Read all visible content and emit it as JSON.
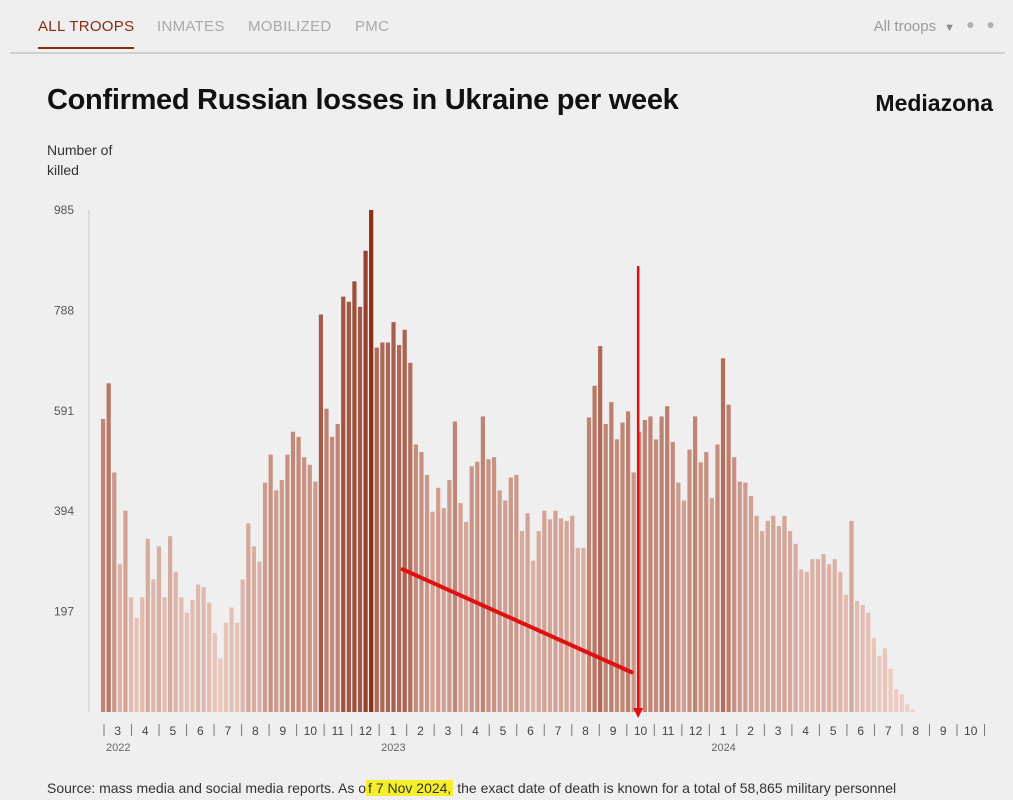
{
  "tabs": [
    {
      "label": "ALL TROOPS",
      "active": true
    },
    {
      "label": "INMATES",
      "active": false
    },
    {
      "label": "MOBILIZED",
      "active": false
    },
    {
      "label": "PMC",
      "active": false
    }
  ],
  "filter": {
    "label": "All troops",
    "icon": "caret-down-icon"
  },
  "more_icon": "more-dots-icon",
  "title": "Confirmed Russian losses in Ukraine per week",
  "brand": "Mediazona",
  "y_axis_label": "Number of killed",
  "source": {
    "prefix": "Source: mass media and social media reports. As o",
    "highlight": "f 7 Nov 2024,",
    "suffix": " the exact date of death is known for a total of 58,865 military personnel"
  },
  "colors": {
    "dark": "#8b2f17",
    "light": "#efcfc6",
    "accent": "#8b2a12",
    "annotation": "#e01010"
  },
  "chart_data": {
    "type": "bar",
    "title": "Confirmed Russian losses in Ukraine per week",
    "ylabel": "Number of killed",
    "ylim": [
      0,
      985
    ],
    "yticks": [
      197,
      394,
      591,
      788,
      985
    ],
    "month_ticks": [
      {
        "label": "3",
        "year": "2022"
      },
      {
        "label": "4"
      },
      {
        "label": "5"
      },
      {
        "label": "6"
      },
      {
        "label": "7"
      },
      {
        "label": "8"
      },
      {
        "label": "9"
      },
      {
        "label": "10"
      },
      {
        "label": "11"
      },
      {
        "label": "12"
      },
      {
        "label": "1",
        "year": "2023"
      },
      {
        "label": "2"
      },
      {
        "label": "3"
      },
      {
        "label": "4"
      },
      {
        "label": "5"
      },
      {
        "label": "6"
      },
      {
        "label": "7"
      },
      {
        "label": "8"
      },
      {
        "label": "9"
      },
      {
        "label": "10"
      },
      {
        "label": "11"
      },
      {
        "label": "12"
      },
      {
        "label": "1",
        "year": "2024"
      },
      {
        "label": "2"
      },
      {
        "label": "3"
      },
      {
        "label": "4"
      },
      {
        "label": "5"
      },
      {
        "label": "6"
      },
      {
        "label": "7"
      },
      {
        "label": "8"
      },
      {
        "label": "9"
      },
      {
        "label": "10"
      }
    ],
    "values": [
      575,
      645,
      470,
      290,
      395,
      225,
      185,
      225,
      340,
      260,
      325,
      225,
      345,
      275,
      225,
      195,
      220,
      250,
      245,
      215,
      155,
      105,
      175,
      205,
      175,
      260,
      370,
      325,
      295,
      450,
      505,
      435,
      455,
      505,
      550,
      540,
      500,
      485,
      452,
      780,
      595,
      540,
      565,
      815,
      805,
      845,
      795,
      905,
      985,
      715,
      725,
      725,
      765,
      720,
      750,
      685,
      525,
      510,
      465,
      393,
      440,
      400,
      455,
      570,
      410,
      373,
      482,
      491,
      580,
      496,
      500,
      435,
      415,
      460,
      465,
      355,
      390,
      297,
      355,
      395,
      378,
      395,
      380,
      375,
      385,
      322,
      322,
      578,
      640,
      718,
      565,
      608,
      535,
      568,
      590,
      470,
      550,
      573,
      580,
      535,
      580,
      600,
      530,
      450,
      415,
      515,
      580,
      490,
      510,
      420,
      525,
      694,
      603,
      500,
      452,
      450,
      424,
      385,
      355,
      375,
      385,
      365,
      385,
      355,
      330,
      280,
      275,
      300,
      300,
      310,
      290,
      300,
      275,
      230,
      375,
      218,
      210,
      195,
      145,
      110,
      125,
      85,
      45,
      35,
      15,
      5
    ],
    "annotations": [
      {
        "type": "trend-line",
        "from": {
          "bar": 54,
          "value": 280
        },
        "to": {
          "bar": 95,
          "value": 78
        }
      },
      {
        "type": "arrow-down",
        "bar": 96,
        "from_value": 875,
        "to_value": 0
      }
    ]
  }
}
